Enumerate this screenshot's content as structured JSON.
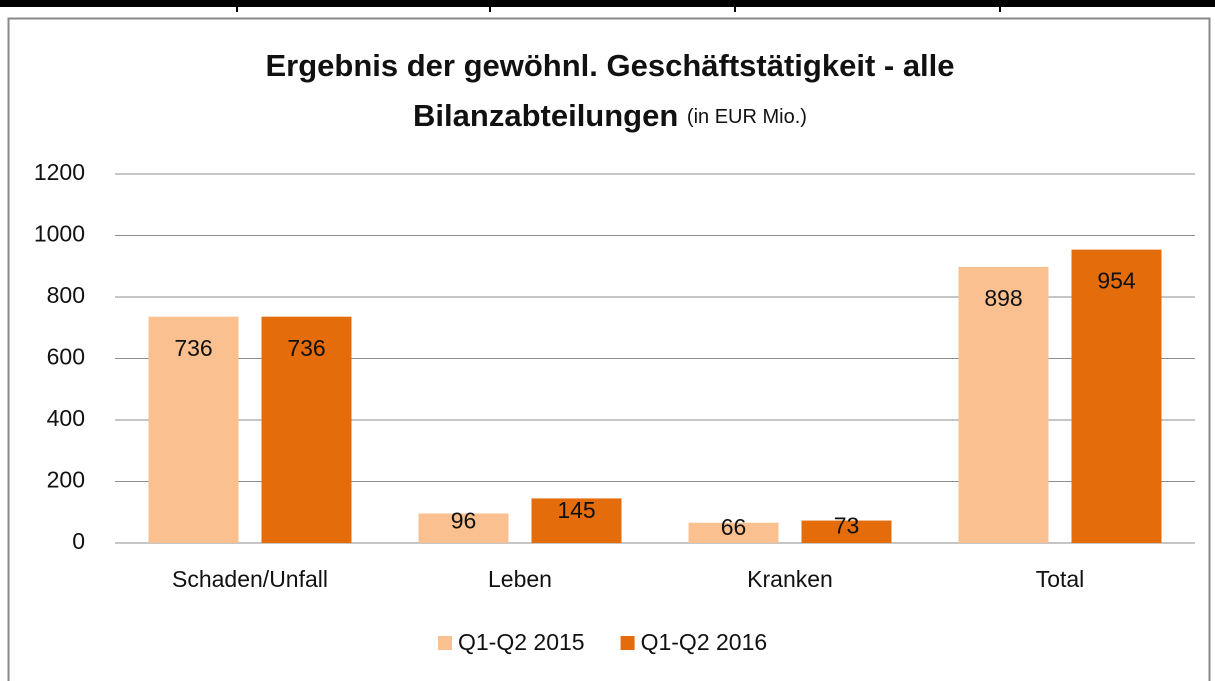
{
  "chart_data": {
    "type": "bar",
    "title": [
      "Ergebnis der gewöhnl. Geschäftstätigkeit - alle",
      "Bilanzabteilungen"
    ],
    "subtitle": "(in EUR Mio.)",
    "categories": [
      "Schaden/Unfall",
      "Leben",
      "Kranken",
      "Total"
    ],
    "series": [
      {
        "name": "Q1-Q2 2015",
        "color": "#fac090",
        "values": [
          736,
          96,
          66,
          898
        ]
      },
      {
        "name": "Q1-Q2 2016",
        "color": "#e46c0a",
        "values": [
          736,
          145,
          73,
          954
        ]
      }
    ],
    "ylim": [
      0,
      1200
    ],
    "yticks": [
      0,
      200,
      400,
      600,
      800,
      1000,
      1200
    ],
    "grid": true,
    "legend": "bottom"
  }
}
